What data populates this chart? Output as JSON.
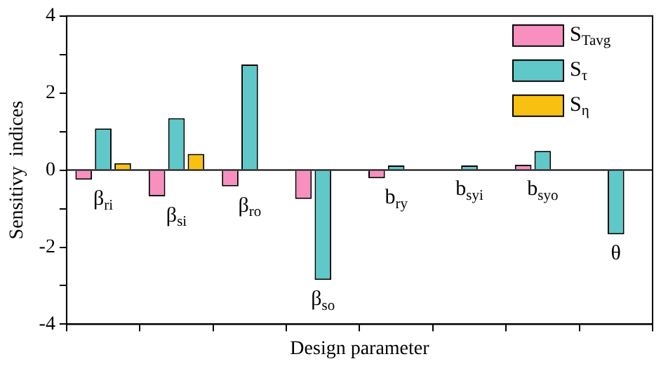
{
  "chart_data": {
    "type": "bar",
    "xlabel": "Design parameter",
    "ylabel": "Sensitivy  indices",
    "categories": [
      "β$_{ri}$",
      "β$_{si}$",
      "β$_{ro}$",
      "β$_{so}$",
      "b$_{ry}$",
      "b$_{syi}$",
      "b$_{syo}$",
      "θ"
    ],
    "series": [
      {
        "name": "S$_{Tavg}$",
        "color": "#f78fbf",
        "values": [
          -0.25,
          -0.68,
          -0.42,
          -0.75,
          -0.21,
          null,
          0.14,
          null
        ]
      },
      {
        "name": "S$_{τ}$",
        "color": "#5fc8c8",
        "values": [
          1.08,
          1.35,
          2.74,
          -2.85,
          0.12,
          0.12,
          0.5,
          -1.67
        ]
      },
      {
        "name": "S$_{η}$",
        "color": "#f8c111",
        "values": [
          0.18,
          0.42,
          null,
          null,
          0,
          null,
          0,
          0
        ]
      }
    ],
    "ylim": [
      -4,
      4
    ],
    "yticks": [
      -4,
      {
        "value": -3,
        "label": null
      },
      -2,
      {
        "value": -1,
        "label": null
      },
      0,
      {
        "value": 1,
        "label": null
      },
      2,
      {
        "value": 3,
        "label": null
      },
      4
    ],
    "grid": false,
    "legend": "top right",
    "tick_labels": "y"
  }
}
